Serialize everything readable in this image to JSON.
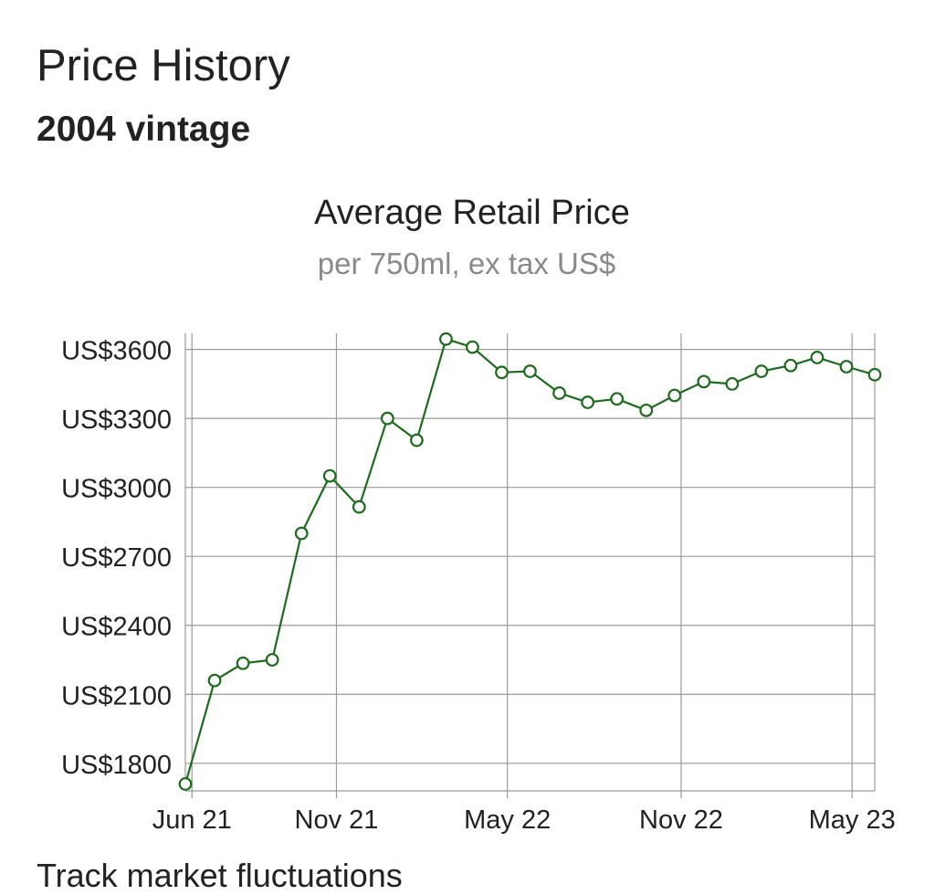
{
  "header": {
    "title": "Price History",
    "subtitle": "2004 vintage"
  },
  "footer_text": "Track market fluctuations",
  "chart_data": {
    "type": "line",
    "title": "Average Retail Price",
    "subtitle": "per 750ml, ex tax US$",
    "xlabel": "",
    "ylabel": "",
    "x": [
      "2021-05-25",
      "2021-06-25",
      "2021-07-25",
      "2021-08-25",
      "2021-09-25",
      "2021-10-25",
      "2021-11-25",
      "2021-12-25",
      "2022-01-25",
      "2022-02-25",
      "2022-03-25",
      "2022-04-25",
      "2022-05-25",
      "2022-06-25",
      "2022-07-25",
      "2022-08-25",
      "2022-09-25",
      "2022-10-25",
      "2022-11-25",
      "2022-12-25",
      "2023-01-25",
      "2023-02-25",
      "2023-03-25",
      "2023-04-25",
      "2023-05-25"
    ],
    "series": [
      {
        "name": "",
        "values": [
          1710,
          2160,
          2235,
          2250,
          2800,
          3050,
          2915,
          3300,
          3205,
          3645,
          3610,
          3500,
          3505,
          3410,
          3370,
          3385,
          3335,
          3400,
          3460,
          3450,
          3505,
          3530,
          3565,
          3525,
          3490
        ]
      }
    ],
    "xticks": [
      {
        "date": "2021-06-01",
        "label": "Jun 21"
      },
      {
        "date": "2021-11-01",
        "label": "Nov 21"
      },
      {
        "date": "2022-05-01",
        "label": "May 22"
      },
      {
        "date": "2022-11-01",
        "label": "Nov 22"
      },
      {
        "date": "2023-05-01",
        "label": "May 23"
      }
    ],
    "yticks": [
      1800,
      2100,
      2400,
      2700,
      3000,
      3300,
      3600
    ],
    "ytick_prefix": "US$",
    "ylim": [
      1680,
      3670
    ],
    "grid": true,
    "line_color": "#1e6b1e",
    "marker_fill": "#ffffff"
  }
}
